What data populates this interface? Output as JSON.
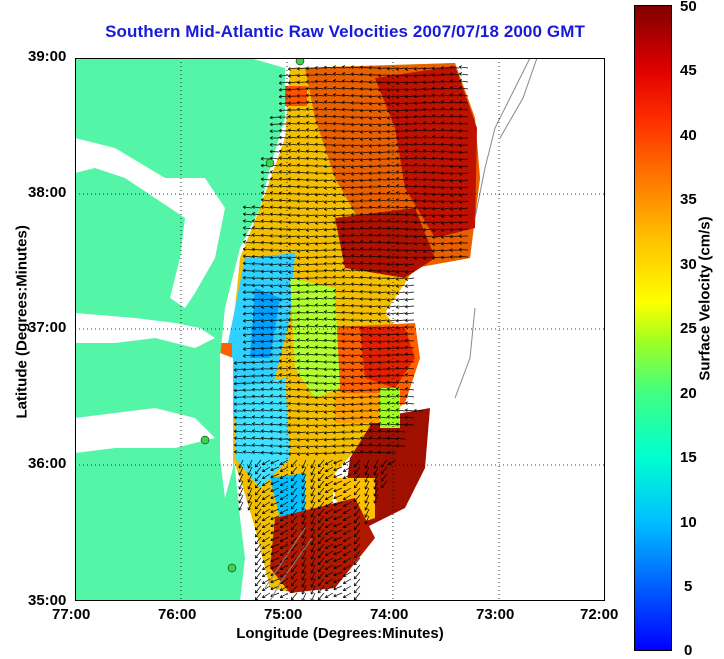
{
  "title": "Southern Mid-Atlantic Raw Velocities 2007/07/18 2000 GMT",
  "x_axis": {
    "label": "Longitude (Degrees:Minutes)",
    "ticks": [
      "77:00",
      "76:00",
      "75:00",
      "74:00",
      "73:00",
      "72:00"
    ]
  },
  "y_axis": {
    "label": "Latitude (Degrees:Minutes)",
    "ticks": [
      "39:00",
      "38:00",
      "37:00",
      "36:00",
      "35:00"
    ]
  },
  "colorbar": {
    "label": "Surface Velocity (cm/s)",
    "ticks": [
      "50",
      "45",
      "40",
      "35",
      "30",
      "25",
      "20",
      "15",
      "10",
      "5",
      "0"
    ],
    "min": 0,
    "max": 50
  },
  "map": {
    "land_color": "#55f5a8",
    "grid": "dotted",
    "lon_range": [
      -77,
      -72
    ],
    "lat_range": [
      35,
      39
    ]
  }
}
